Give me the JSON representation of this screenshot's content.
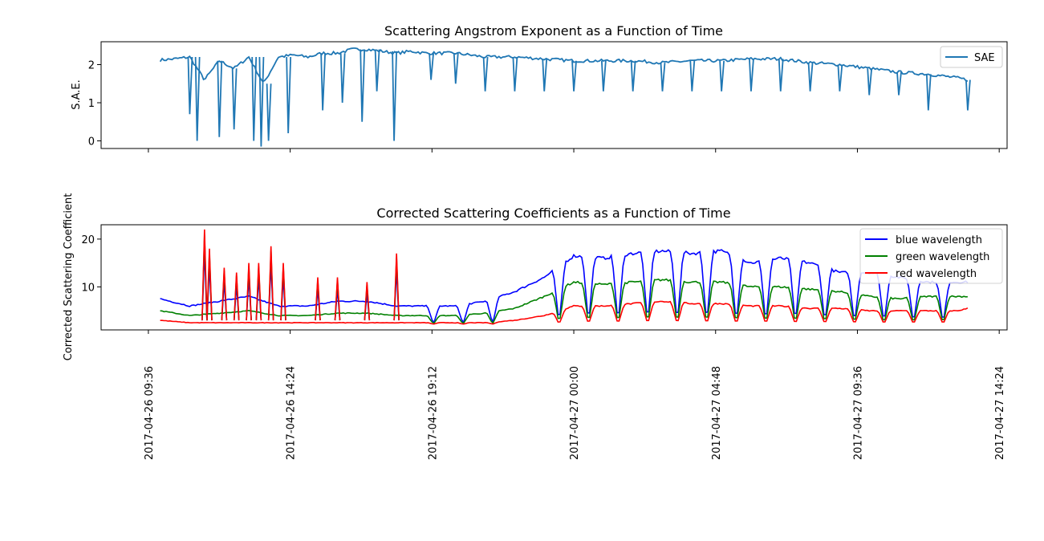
{
  "chart_data": [
    {
      "type": "line",
      "title": "Scattering Angstrom Exponent as a Function of Time",
      "xlabel": "",
      "ylabel": "S.A.E.",
      "xlim": [
        "2017-04-26 08:00",
        "2017-04-27 14:40"
      ],
      "ylim": [
        -0.2,
        2.6
      ],
      "yticks": [
        0,
        1,
        2
      ],
      "xticks": [
        "2017-04-26 09:36",
        "2017-04-26 14:24",
        "2017-04-26 19:12",
        "2017-04-27 00:00",
        "2017-04-27 04:48",
        "2017-04-27 09:36",
        "2017-04-27 14:24"
      ],
      "x_tick_labels_shown": false,
      "legend": "top-right",
      "series": [
        {
          "name": "SAE",
          "color": "#1f77b4",
          "x": [
            "2017-04-26 10:00",
            "2017-04-26 10:30",
            "2017-04-26 11:00",
            "2017-04-26 11:30",
            "2017-04-26 12:00",
            "2017-04-26 12:30",
            "2017-04-26 13:00",
            "2017-04-26 13:30",
            "2017-04-26 14:00",
            "2017-04-26 14:30",
            "2017-04-26 15:00",
            "2017-04-26 15:30",
            "2017-04-26 16:00",
            "2017-04-26 16:30",
            "2017-04-26 17:00",
            "2017-04-26 17:30",
            "2017-04-26 18:00",
            "2017-04-26 18:30",
            "2017-04-26 19:00",
            "2017-04-26 19:30",
            "2017-04-26 20:00",
            "2017-04-26 21:00",
            "2017-04-26 22:00",
            "2017-04-26 23:00",
            "2017-04-27 00:00",
            "2017-04-27 01:00",
            "2017-04-27 02:00",
            "2017-04-27 03:00",
            "2017-04-27 04:00",
            "2017-04-27 05:00",
            "2017-04-27 06:00",
            "2017-04-27 07:00",
            "2017-04-27 08:00",
            "2017-04-27 09:00",
            "2017-04-27 10:00",
            "2017-04-27 11:00",
            "2017-04-27 12:00",
            "2017-04-27 13:00",
            "2017-04-27 13:20"
          ],
          "values": [
            2.12,
            2.15,
            2.2,
            1.6,
            2.1,
            1.9,
            2.2,
            1.5,
            2.2,
            2.25,
            2.2,
            2.3,
            2.3,
            2.4,
            2.4,
            2.35,
            2.3,
            2.35,
            2.3,
            2.3,
            2.3,
            2.2,
            2.2,
            2.15,
            2.1,
            2.1,
            2.1,
            2.05,
            2.1,
            2.1,
            2.15,
            2.15,
            2.05,
            2.0,
            1.9,
            1.8,
            1.75,
            1.65,
            1.6
          ],
          "dips": [
            {
              "x": "2017-04-26 11:00",
              "y": 0.7
            },
            {
              "x": "2017-04-26 11:15",
              "y": 0.0
            },
            {
              "x": "2017-04-26 12:00",
              "y": 0.1
            },
            {
              "x": "2017-04-26 12:30",
              "y": 0.3
            },
            {
              "x": "2017-04-26 13:10",
              "y": 0.0
            },
            {
              "x": "2017-04-26 13:25",
              "y": -0.15
            },
            {
              "x": "2017-04-26 13:40",
              "y": 0.0
            },
            {
              "x": "2017-04-26 14:20",
              "y": 0.2
            },
            {
              "x": "2017-04-26 15:30",
              "y": 0.8
            },
            {
              "x": "2017-04-26 16:10",
              "y": 1.0
            },
            {
              "x": "2017-04-26 16:50",
              "y": 0.5
            },
            {
              "x": "2017-04-26 17:20",
              "y": 1.3
            },
            {
              "x": "2017-04-26 17:55",
              "y": 0.0
            },
            {
              "x": "2017-04-26 19:10",
              "y": 1.6
            },
            {
              "x": "2017-04-26 20:00",
              "y": 1.5
            },
            {
              "x": "2017-04-26 21:00",
              "y": 1.3
            },
            {
              "x": "2017-04-26 22:00",
              "y": 1.3
            },
            {
              "x": "2017-04-26 23:00",
              "y": 1.3
            },
            {
              "x": "2017-04-27 00:00",
              "y": 1.3
            },
            {
              "x": "2017-04-27 01:00",
              "y": 1.3
            },
            {
              "x": "2017-04-27 02:00",
              "y": 1.3
            },
            {
              "x": "2017-04-27 03:00",
              "y": 1.3
            },
            {
              "x": "2017-04-27 04:00",
              "y": 1.3
            },
            {
              "x": "2017-04-27 05:00",
              "y": 1.3
            },
            {
              "x": "2017-04-27 06:00",
              "y": 1.3
            },
            {
              "x": "2017-04-27 07:00",
              "y": 1.3
            },
            {
              "x": "2017-04-27 08:00",
              "y": 1.3
            },
            {
              "x": "2017-04-27 09:00",
              "y": 1.3
            },
            {
              "x": "2017-04-27 10:00",
              "y": 1.2
            },
            {
              "x": "2017-04-27 11:00",
              "y": 1.2
            },
            {
              "x": "2017-04-27 12:00",
              "y": 0.8
            },
            {
              "x": "2017-04-27 13:20",
              "y": 0.8
            }
          ]
        }
      ]
    },
    {
      "type": "line",
      "title": "Corrected Scattering Coefficients as a Function of Time",
      "xlabel": "",
      "ylabel": "Corrected Scattering Coefficient",
      "xlim": [
        "2017-04-26 08:00",
        "2017-04-27 14:40"
      ],
      "ylim": [
        1,
        23
      ],
      "yticks": [
        10,
        20
      ],
      "xticks": [
        "2017-04-26 09:36",
        "2017-04-26 14:24",
        "2017-04-26 19:12",
        "2017-04-27 00:00",
        "2017-04-27 04:48",
        "2017-04-27 09:36",
        "2017-04-27 14:24"
      ],
      "x_tick_labels_shown": true,
      "legend": "top-right",
      "series": [
        {
          "name": "blue wavelength",
          "color": "#0000ff",
          "x": [
            "2017-04-26 10:00",
            "2017-04-26 11:00",
            "2017-04-26 12:00",
            "2017-04-26 13:00",
            "2017-04-26 14:00",
            "2017-04-26 15:00",
            "2017-04-26 16:00",
            "2017-04-26 17:00",
            "2017-04-26 18:00",
            "2017-04-26 19:00",
            "2017-04-26 20:00",
            "2017-04-26 21:00",
            "2017-04-26 22:00",
            "2017-04-26 23:00",
            "2017-04-27 00:00",
            "2017-04-27 01:00",
            "2017-04-27 02:00",
            "2017-04-27 03:00",
            "2017-04-27 04:00",
            "2017-04-27 05:00",
            "2017-04-27 06:00",
            "2017-04-27 07:00",
            "2017-04-27 08:00",
            "2017-04-27 09:00",
            "2017-04-27 10:00",
            "2017-04-27 11:00",
            "2017-04-27 12:00",
            "2017-04-27 13:00",
            "2017-04-27 13:20"
          ],
          "values": [
            7.5,
            6,
            7,
            8,
            6,
            6,
            7,
            7,
            6,
            6,
            6,
            7,
            9,
            12,
            16.5,
            16,
            17,
            17.5,
            17,
            17.5,
            15,
            16,
            15,
            13,
            13,
            12,
            11,
            11,
            11
          ]
        },
        {
          "name": "green wavelength",
          "color": "#008000",
          "x": [
            "2017-04-26 10:00",
            "2017-04-26 11:00",
            "2017-04-26 12:00",
            "2017-04-26 13:00",
            "2017-04-26 14:00",
            "2017-04-26 15:00",
            "2017-04-26 16:00",
            "2017-04-26 17:00",
            "2017-04-26 18:00",
            "2017-04-26 19:00",
            "2017-04-26 20:00",
            "2017-04-26 21:00",
            "2017-04-26 22:00",
            "2017-04-26 23:00",
            "2017-04-27 00:00",
            "2017-04-27 01:00",
            "2017-04-27 02:00",
            "2017-04-27 03:00",
            "2017-04-27 04:00",
            "2017-04-27 05:00",
            "2017-04-27 06:00",
            "2017-04-27 07:00",
            "2017-04-27 08:00",
            "2017-04-27 09:00",
            "2017-04-27 10:00",
            "2017-04-27 11:00",
            "2017-04-27 12:00",
            "2017-04-27 13:00",
            "2017-04-27 13:20"
          ],
          "values": [
            5,
            4,
            4.5,
            5,
            4,
            4,
            4.5,
            4.5,
            4,
            4,
            4,
            4.5,
            5.5,
            8,
            11,
            10.5,
            11,
            11.5,
            11,
            11,
            10,
            10,
            9.5,
            9,
            8,
            7.5,
            8,
            8,
            8
          ]
        },
        {
          "name": "red wavelength",
          "color": "#ff0000",
          "x": [
            "2017-04-26 10:00",
            "2017-04-26 11:00",
            "2017-04-26 12:00",
            "2017-04-26 13:00",
            "2017-04-26 14:00",
            "2017-04-26 15:00",
            "2017-04-26 16:00",
            "2017-04-26 17:00",
            "2017-04-26 18:00",
            "2017-04-26 19:00",
            "2017-04-26 20:00",
            "2017-04-26 21:00",
            "2017-04-26 22:00",
            "2017-04-26 23:00",
            "2017-04-27 00:00",
            "2017-04-27 01:00",
            "2017-04-27 02:00",
            "2017-04-27 03:00",
            "2017-04-27 04:00",
            "2017-04-27 05:00",
            "2017-04-27 06:00",
            "2017-04-27 07:00",
            "2017-04-27 08:00",
            "2017-04-27 09:00",
            "2017-04-27 10:00",
            "2017-04-27 11:00",
            "2017-04-27 12:00",
            "2017-04-27 13:00",
            "2017-04-27 13:20"
          ],
          "values": [
            3,
            2.5,
            2.5,
            2.5,
            2.5,
            2.5,
            2.5,
            2.5,
            2.5,
            2.5,
            2.5,
            2.5,
            3,
            4,
            6,
            6,
            6.5,
            7,
            6.5,
            6.5,
            6,
            6,
            5.5,
            5.5,
            5,
            5,
            5,
            5,
            5.5
          ]
        }
      ],
      "spikes": [
        {
          "x": "2017-04-26 11:30",
          "y": 22
        },
        {
          "x": "2017-04-26 11:40",
          "y": 18
        },
        {
          "x": "2017-04-26 12:10",
          "y": 14
        },
        {
          "x": "2017-04-26 12:35",
          "y": 13
        },
        {
          "x": "2017-04-26 13:00",
          "y": 15
        },
        {
          "x": "2017-04-26 13:20",
          "y": 15
        },
        {
          "x": "2017-04-26 13:45",
          "y": 18.5
        },
        {
          "x": "2017-04-26 14:10",
          "y": 15
        },
        {
          "x": "2017-04-26 15:20",
          "y": 12
        },
        {
          "x": "2017-04-26 16:00",
          "y": 12
        },
        {
          "x": "2017-04-26 17:00",
          "y": 11
        },
        {
          "x": "2017-04-26 18:00",
          "y": 17
        }
      ],
      "dips": [
        "2017-04-26 19:15",
        "2017-04-26 20:15",
        "2017-04-26 21:15",
        "2017-04-26 23:30",
        "2017-04-27 00:30",
        "2017-04-27 01:30",
        "2017-04-27 02:30",
        "2017-04-27 03:30",
        "2017-04-27 04:30",
        "2017-04-27 05:30",
        "2017-04-27 06:30",
        "2017-04-27 07:30",
        "2017-04-27 08:30",
        "2017-04-27 09:30",
        "2017-04-27 10:30",
        "2017-04-27 11:30",
        "2017-04-27 12:30"
      ]
    }
  ]
}
